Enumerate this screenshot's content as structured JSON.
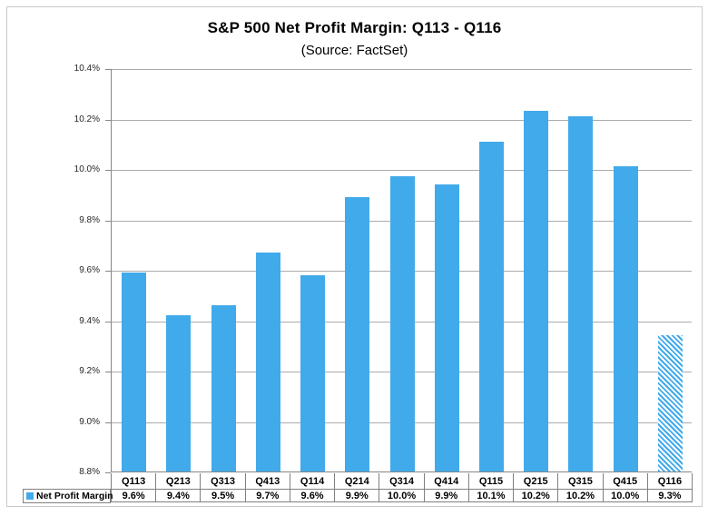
{
  "title": "S&P 500 Net Profit Margin: Q113 - Q116",
  "subtitle": "(Source: FactSet)",
  "legend": {
    "label": "Net Profit Margin",
    "swatch": "legend-swatch-blue"
  },
  "colors": {
    "bar": "#41aaea",
    "gridline": "#ababab",
    "axis": "#868686",
    "table_border": "#808080",
    "outer_border": "#c9c9c9",
    "text": "#000000"
  },
  "chart_data": {
    "type": "bar",
    "title": "S&P 500 Net Profit Margin: Q113 - Q116",
    "subtitle": "(Source: FactSet)",
    "categories": [
      "Q113",
      "Q213",
      "Q313",
      "Q413",
      "Q114",
      "Q214",
      "Q314",
      "Q414",
      "Q115",
      "Q215",
      "Q315",
      "Q415",
      "Q116"
    ],
    "series": [
      {
        "name": "Net Profit Margin",
        "values": [
          9.59,
          9.42,
          9.46,
          9.67,
          9.58,
          9.89,
          9.97,
          9.94,
          10.11,
          10.23,
          10.21,
          10.01,
          9.34
        ],
        "display_values": [
          "9.6%",
          "9.4%",
          "9.5%",
          "9.7%",
          "9.6%",
          "9.9%",
          "10.0%",
          "9.9%",
          "10.1%",
          "10.2%",
          "10.2%",
          "10.0%",
          "9.3%"
        ]
      }
    ],
    "xlabel": "",
    "ylabel": "",
    "ylim": [
      8.8,
      10.4
    ],
    "ytick_step": 0.2,
    "ytick_labels": [
      "10.4%",
      "10.2%",
      "10.0%",
      "9.8%",
      "9.6%",
      "9.4%",
      "9.2%",
      "9.0%",
      "8.8%"
    ],
    "grid": true,
    "legend_position": "bottom-left-table",
    "last_bar_style": "hatched"
  }
}
